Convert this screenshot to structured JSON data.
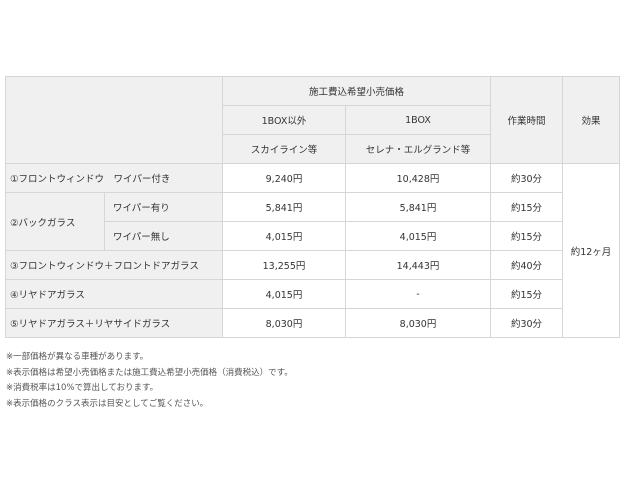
{
  "header": {
    "price_group": "施工費込希望小売価格",
    "col1": "1BOX以外",
    "col1_example": "スカイライン等",
    "col2": "1BOX",
    "col2_example": "セレナ・エルグランド等",
    "time": "作業時間",
    "effect": "効果"
  },
  "rows": [
    {
      "label": "①フロントウィンドウ　ワイパー付き",
      "price1": "9,240円",
      "price2": "10,428円",
      "time": "約30分"
    },
    {
      "label": "②バックガラス",
      "sub": "ワイパー有り",
      "price1": "5,841円",
      "price2": "5,841円",
      "time": "約15分"
    },
    {
      "sub": "ワイパー無し",
      "price1": "4,015円",
      "price2": "4,015円",
      "time": "約15分"
    },
    {
      "label": "③フロントウィンドウ＋フロントドアガラス",
      "price1": "13,255円",
      "price2": "14,443円",
      "time": "約40分"
    },
    {
      "label": "④リヤドアガラス",
      "price1": "4,015円",
      "price2": "-",
      "time": "約15分"
    },
    {
      "label": "⑤リヤドアガラス＋リヤサイドガラス",
      "price1": "8,030円",
      "price2": "8,030円",
      "time": "約30分"
    }
  ],
  "effect_value": "約12ヶ月",
  "notes": [
    "※一部価格が異なる車種があります。",
    "※表示価格は希望小売価格または施工費込希望小売価格（消費税込）です。",
    "※消費税率は10%で算出しております。",
    "※表示価格のクラス表示は目安としてご覧ください。"
  ]
}
